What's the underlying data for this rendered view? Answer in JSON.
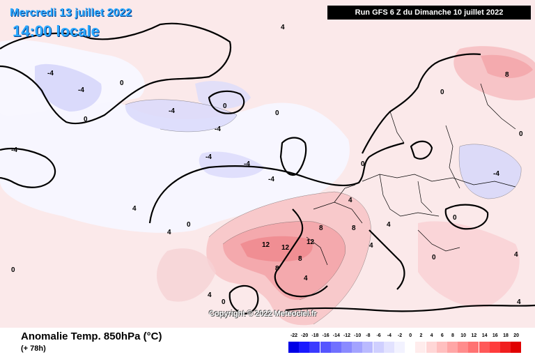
{
  "header": {
    "date": "Mercredi 13 juillet 2022",
    "time": "14:00 locale",
    "run": "Run GFS 6 Z du Dimanche 10 juillet 2022"
  },
  "copyright": "Copyright © 2022 Meteociel.fr",
  "legend": {
    "title": "Anomalie Temp. 850hPa (°C)",
    "subtitle": "(+ 78h)",
    "ticks": [
      "-22",
      "-20",
      "-18",
      "-16",
      "-14",
      "-12",
      "-10",
      "-8",
      "-6",
      "-4",
      "-2",
      "0",
      "2",
      "4",
      "6",
      "8",
      "10",
      "12",
      "14",
      "16",
      "18",
      "20"
    ],
    "colors": [
      "#0000e6",
      "#1a1aff",
      "#3a3aff",
      "#5555ff",
      "#7070ff",
      "#8a8aff",
      "#a3a3ff",
      "#babaff",
      "#cfcfff",
      "#e2e2ff",
      "#f2f2ff",
      "#ffffff",
      "#ffecec",
      "#ffd6d6",
      "#ffbfbf",
      "#ffa6a6",
      "#ff8c8c",
      "#ff7272",
      "#ff5858",
      "#ff3c3c",
      "#f01e1e",
      "#e00000"
    ]
  },
  "contour_labels": [
    "0",
    "-4",
    "4",
    "8",
    "12"
  ]
}
